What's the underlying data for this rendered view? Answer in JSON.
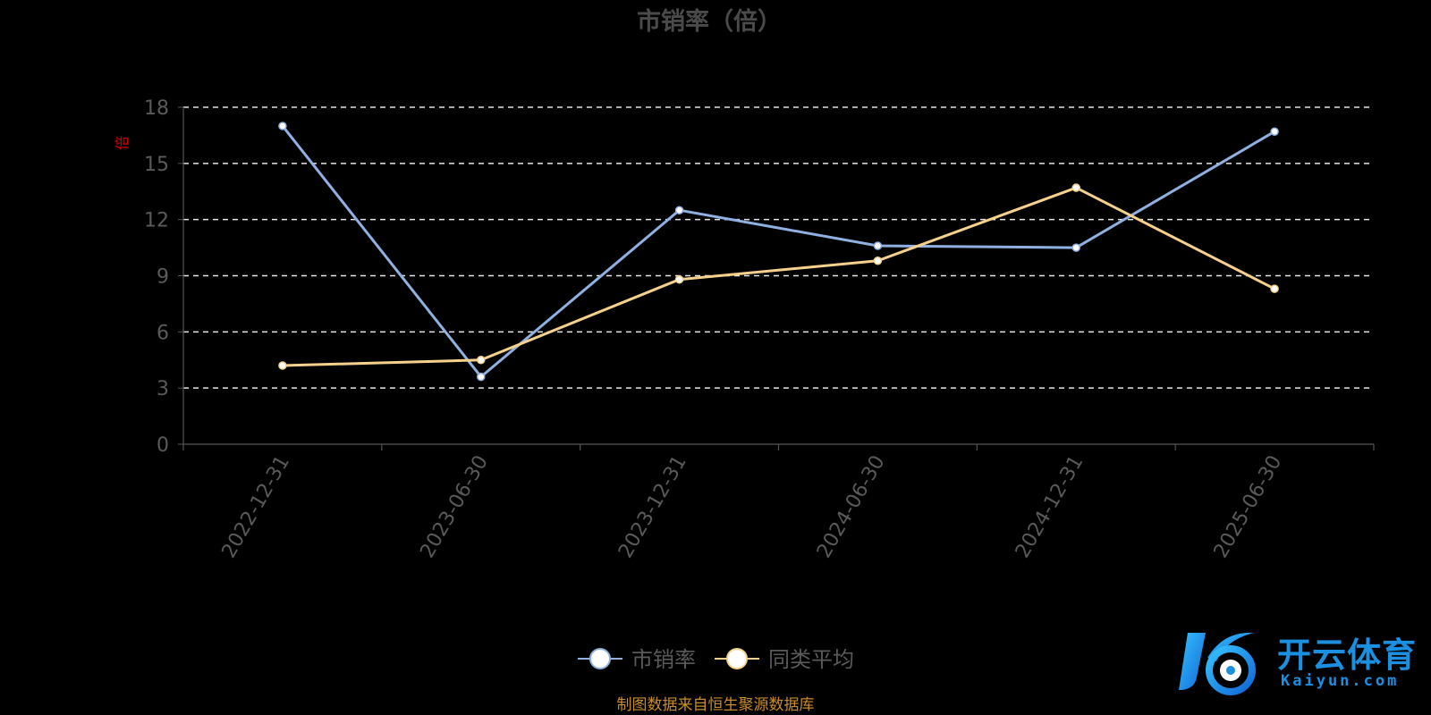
{
  "chart_data": {
    "type": "line",
    "title": "市销率（倍）",
    "y_unit": "倍",
    "categories": [
      "2022-12-31",
      "2023-06-30",
      "2023-12-31",
      "2024-06-30",
      "2024-12-31",
      "2025-06-30"
    ],
    "x_positions": [
      0.5,
      1.5,
      2.5,
      3.5,
      4.5,
      5.5
    ],
    "x_axis_ticks": [
      0,
      1,
      2,
      3,
      4,
      5,
      6
    ],
    "ylim": [
      0,
      18
    ],
    "yticks": [
      0,
      3,
      6,
      9,
      12,
      15,
      18
    ],
    "grid": true,
    "legend_position": "bottom-center",
    "series": [
      {
        "name": "市销率",
        "values": [
          17.0,
          3.6,
          12.5,
          10.6,
          10.5,
          16.7
        ],
        "color": "#8fb0e0"
      },
      {
        "name": "同类平均",
        "values": [
          4.2,
          4.5,
          8.8,
          9.8,
          13.7,
          8.3
        ],
        "color": "#f5d18c"
      }
    ],
    "source_note": "制图数据来自恒生聚源数据库"
  },
  "watermark": {
    "text_cn": "开云体育",
    "text_en": "Kaiyun.com",
    "color": "#1b8fe0"
  }
}
